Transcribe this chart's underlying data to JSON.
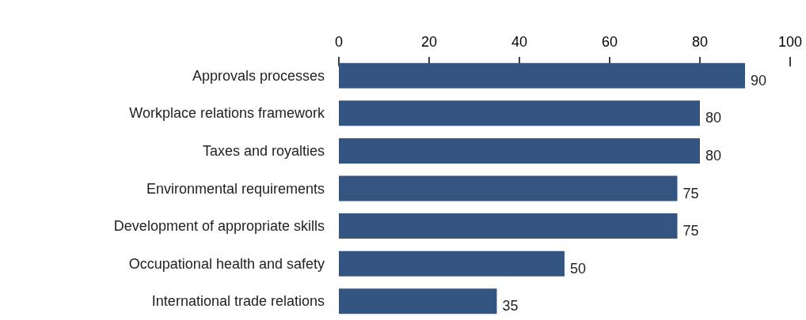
{
  "chart_data": {
    "type": "bar",
    "orientation": "horizontal",
    "categories": [
      "Approvals processes",
      "Workplace relations framework",
      "Taxes and royalties",
      "Environmental requirements",
      "Development of appropriate skills",
      "Occupational health and safety",
      "International trade relations"
    ],
    "values": [
      90,
      80,
      80,
      75,
      75,
      50,
      35
    ],
    "color": "#34557f",
    "xlim": [
      0,
      100
    ],
    "xticks": [
      0,
      20,
      40,
      60,
      80,
      100
    ],
    "data_labels": true,
    "grid": false
  }
}
